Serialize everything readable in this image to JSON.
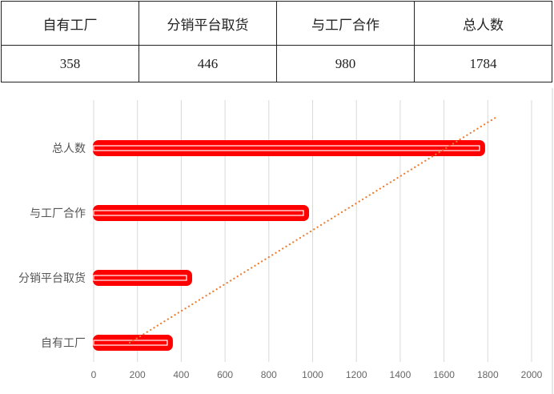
{
  "table": {
    "headers": [
      "自有工厂",
      "分销平台取货",
      "与工厂合作",
      "总人数"
    ],
    "values": [
      "358",
      "446",
      "980",
      "1784"
    ]
  },
  "chart_data": {
    "type": "bar",
    "orientation": "horizontal",
    "categories": [
      "自有工厂",
      "分销平台取货",
      "与工厂合作",
      "总人数"
    ],
    "values": [
      358,
      446,
      980,
      1784
    ],
    "xlim": [
      0,
      2000
    ],
    "xticks": [
      "0",
      "200",
      "400",
      "600",
      "800",
      "1000",
      "1200",
      "1400",
      "1600",
      "1800",
      "2000"
    ],
    "grid": "vertical",
    "bar_color": "#FF0000",
    "trendline": {
      "style": "dotted",
      "color": "#ED7D31"
    },
    "title": "",
    "xlabel": "",
    "ylabel": ""
  }
}
